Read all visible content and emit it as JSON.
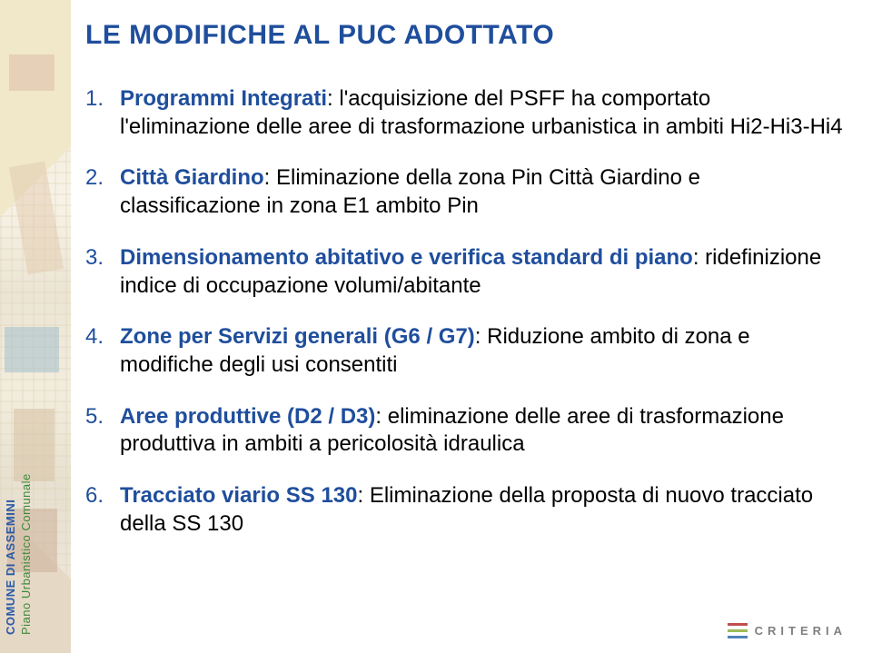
{
  "colors": {
    "title": "#1f4e9c",
    "lead": "#1f4e9c",
    "number": "#1f4e9c",
    "sidebar_org": "#2a5aa8",
    "sidebar_plan": "#3a8a3a",
    "bar1": "#c0504d",
    "bar2": "#9bbb59",
    "bar3": "#4f81bd",
    "logo_text": "#7f7f7f"
  },
  "sidebar": {
    "org": "COMUNE DI ASSEMINI",
    "plan": "Piano Urbanistico Comunale"
  },
  "title": "LE MODIFICHE AL PUC ADOTTATO",
  "items": [
    {
      "lead": "Programmi Integrati",
      "tail": ": l'acquisizione del PSFF ha comportato l'eliminazione delle aree di trasformazione urbanistica in ambiti Hi2-Hi3-Hi4"
    },
    {
      "lead": "Città Giardino",
      "tail": ": Eliminazione della zona Pin Città Giardino e classificazione in zona E1 ambito Pin"
    },
    {
      "lead": "Dimensionamento abitativo e verifica standard di piano",
      "tail": ": ridefinizione indice di occupazione volumi/abitante"
    },
    {
      "lead": "Zone per Servizi generali (G6 / G7)",
      "tail": ": Riduzione ambito di zona  e modifiche degli usi consentiti"
    },
    {
      "lead": "Aree produttive (D2  / D3)",
      "tail": ": eliminazione delle aree di trasformazione produttiva in ambiti a pericolosità idraulica"
    },
    {
      "lead": "Tracciato viario SS 130",
      "tail": ": Eliminazione della proposta di nuovo tracciato della SS 130"
    }
  ],
  "footer": {
    "brand": "CRITERIA"
  }
}
